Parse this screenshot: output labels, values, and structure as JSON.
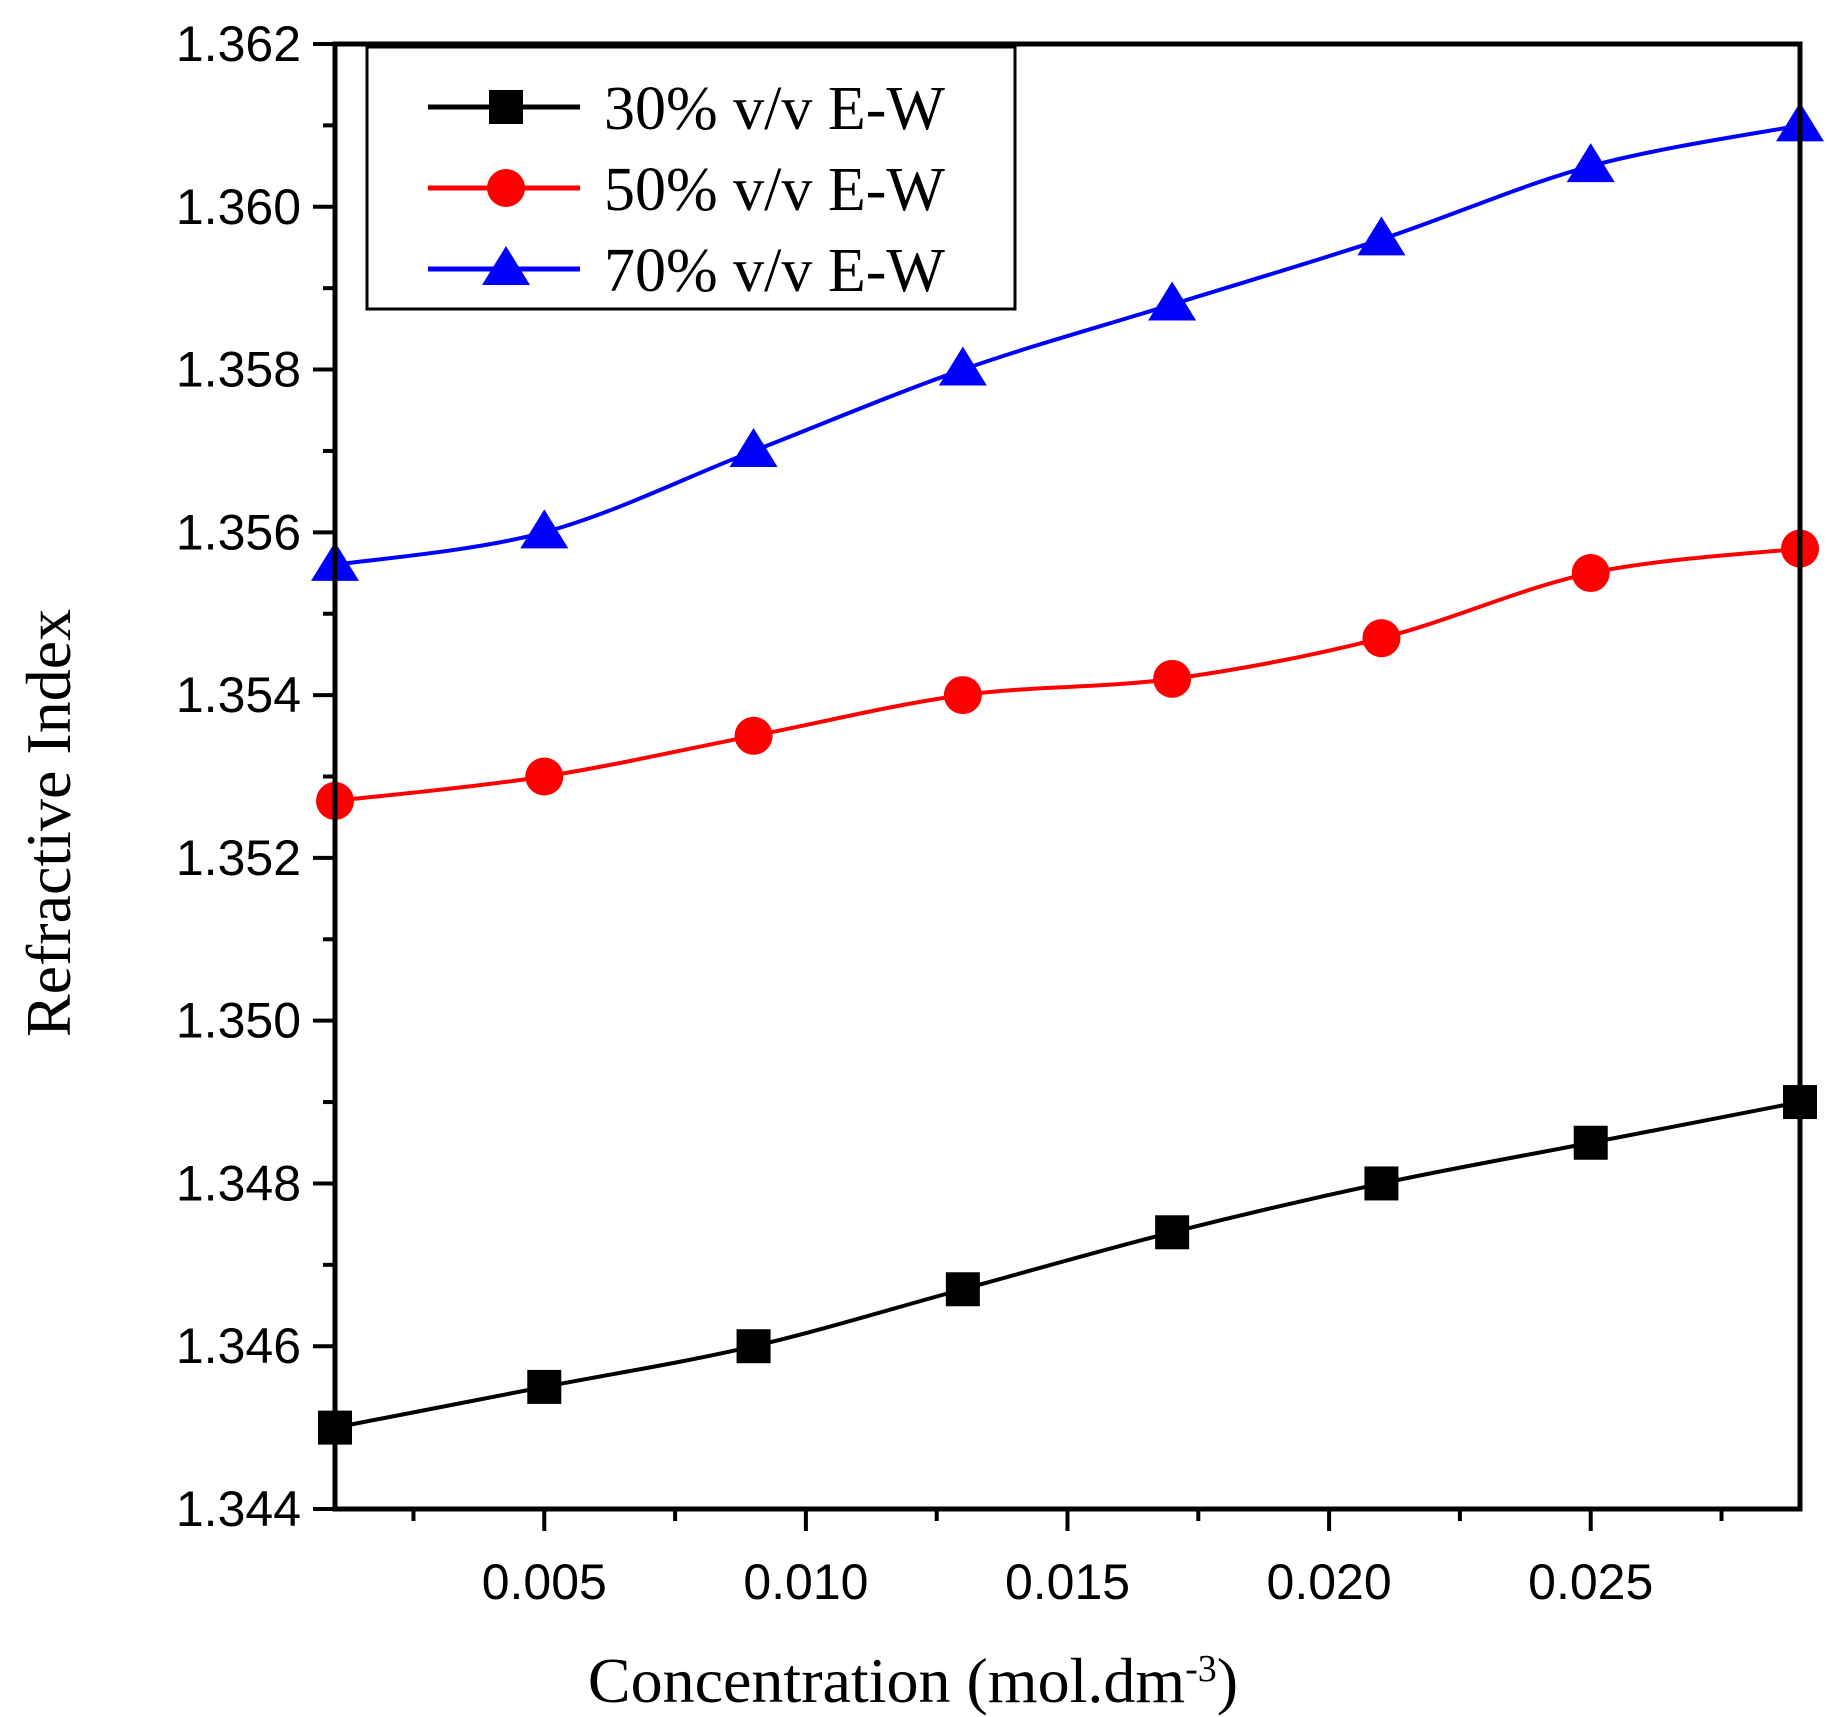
{
  "chart_data": {
    "type": "line",
    "xlabel": "Concentration (mol.dm",
    "xlabel_sup": "-3",
    "xlabel_end": ")",
    "ylabel": "Refractive Index",
    "xlim": [
      0.001,
      0.029
    ],
    "ylim": [
      1.344,
      1.362
    ],
    "x_ticks": [
      0.005,
      0.01,
      0.015,
      0.02,
      0.025
    ],
    "x_tick_labels": [
      "0.005",
      "0.010",
      "0.015",
      "0.020",
      "0.025"
    ],
    "y_ticks": [
      1.344,
      1.346,
      1.348,
      1.35,
      1.352,
      1.354,
      1.356,
      1.358,
      1.36,
      1.362
    ],
    "y_tick_labels": [
      "1.344",
      "1.346",
      "1.348",
      "1.350",
      "1.352",
      "1.354",
      "1.356",
      "1.358",
      "1.360",
      "1.362"
    ],
    "grid": false,
    "legend_position": "top-left",
    "x": [
      0.001,
      0.005,
      0.009,
      0.013,
      0.017,
      0.021,
      0.025,
      0.029
    ],
    "series": [
      {
        "name": "30% v/v E-W",
        "marker": "square",
        "color": "#000000",
        "values": [
          1.345,
          1.3455,
          1.346,
          1.3467,
          1.3474,
          1.348,
          1.3485,
          1.349
        ]
      },
      {
        "name": "50% v/v E-W",
        "marker": "circle",
        "color": "#ff0000",
        "values": [
          1.3527,
          1.353,
          1.3535,
          1.354,
          1.3542,
          1.3547,
          1.3555,
          1.3558
        ]
      },
      {
        "name": "70% v/v E-W",
        "marker": "triangle",
        "color": "#0000ff",
        "values": [
          1.3556,
          1.356,
          1.357,
          1.358,
          1.3588,
          1.3596,
          1.3605,
          1.361
        ]
      }
    ]
  }
}
